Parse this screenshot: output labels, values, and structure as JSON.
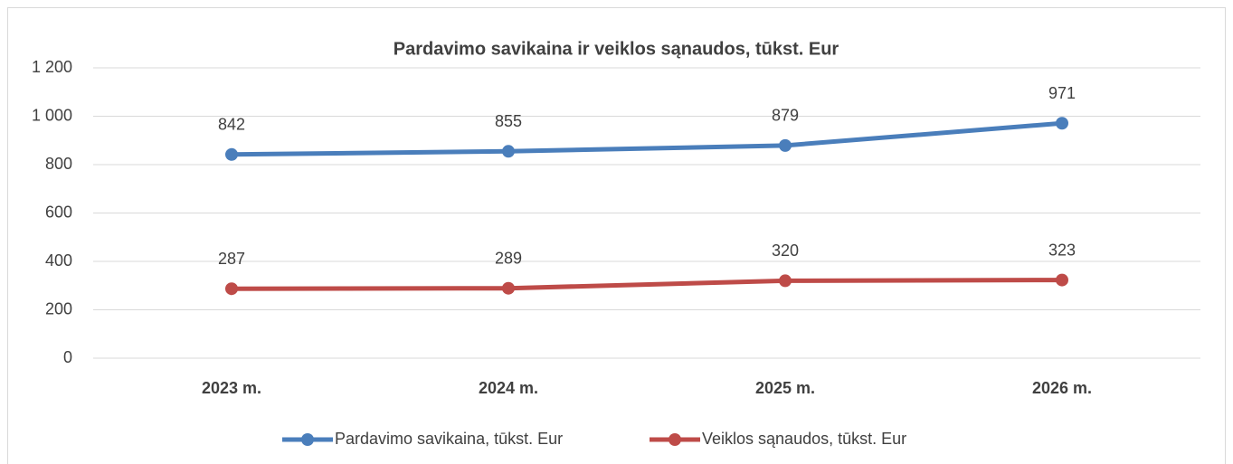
{
  "chart_data": {
    "type": "line",
    "title": "Pardavimo savikaina ir veiklos sąnaudos, tūkst. Eur",
    "categories": [
      "2023 m.",
      "2024 m.",
      "2025 m.",
      "2026 m."
    ],
    "series": [
      {
        "name": "Pardavimo savikaina, tūkst. Eur",
        "color": "#4a7ebb",
        "values": [
          842,
          855,
          879,
          971
        ]
      },
      {
        "name": "Veiklos sąnaudos, tūkst. Eur",
        "color": "#be4b48",
        "values": [
          287,
          289,
          320,
          323
        ]
      }
    ],
    "ylim": [
      0,
      1200
    ],
    "yticks": [
      0,
      200,
      400,
      600,
      800,
      {
        "value": 1000,
        "label": "1 000"
      },
      {
        "value": 1200,
        "label": "1 200"
      }
    ],
    "grid": true,
    "legend": "bottom"
  }
}
